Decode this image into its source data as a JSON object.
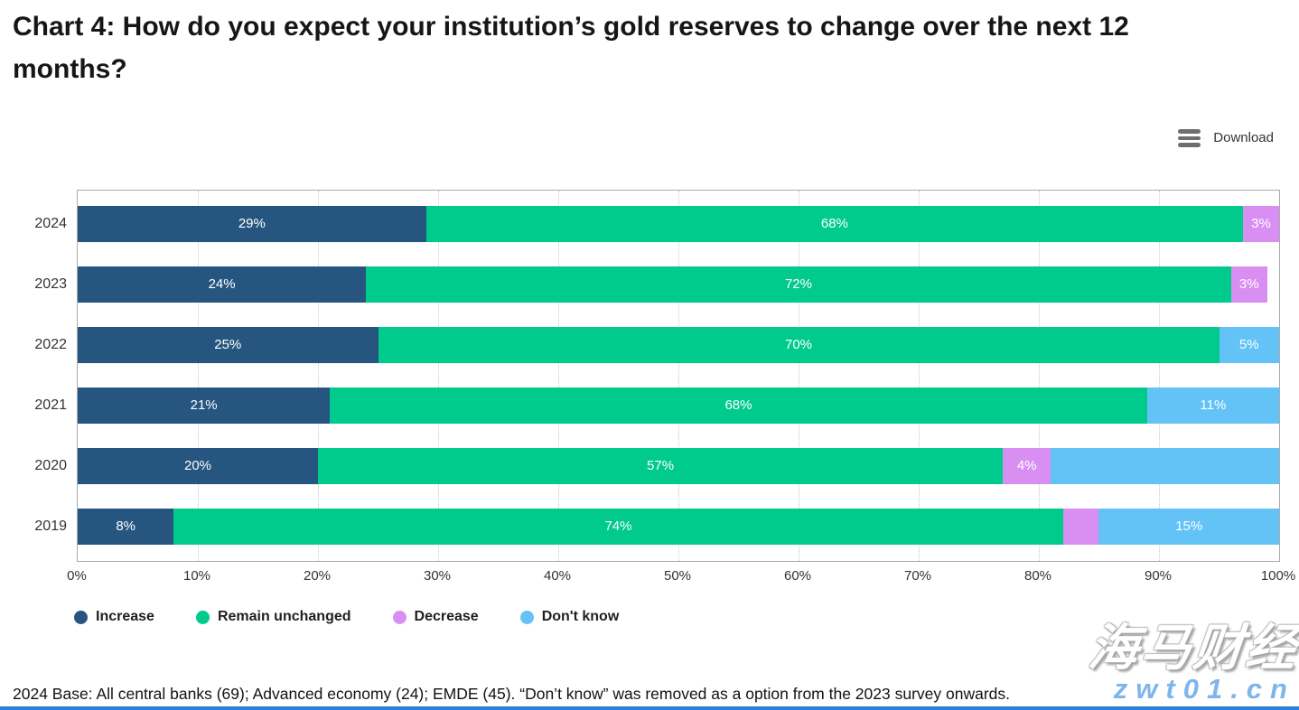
{
  "title": "Chart 4: How do you expect your institution’s gold reserves to change over the next 12 months?",
  "toolbar": {
    "download_label": "Download",
    "menu_icon": "hamburger-menu-icon"
  },
  "chart_data": {
    "type": "bar",
    "orientation": "horizontal-stacked",
    "title": "Chart 4: How do you expect your institution’s gold reserves to change over the next 12 months?",
    "categories": [
      "2024",
      "2023",
      "2022",
      "2021",
      "2020",
      "2019"
    ],
    "series": [
      {
        "name": "Increase",
        "color": "#26567f",
        "values": [
          29,
          24,
          25,
          21,
          20,
          8
        ],
        "labels": [
          "29%",
          "24%",
          "25%",
          "21%",
          "20%",
          "8%"
        ]
      },
      {
        "name": "Remain unchanged",
        "color": "#00ca8c",
        "values": [
          68,
          72,
          70,
          68,
          57,
          74
        ],
        "labels": [
          "68%",
          "72%",
          "70%",
          "68%",
          "57%",
          "74%"
        ]
      },
      {
        "name": "Decrease",
        "color": "#d98ff2",
        "values": [
          3,
          3,
          0,
          0,
          4,
          3
        ],
        "labels": [
          "3%",
          "3%",
          "",
          "",
          "4%",
          ""
        ]
      },
      {
        "name": "Don't know",
        "color": "#63c3f7",
        "values": [
          0,
          0,
          5,
          11,
          19,
          15
        ],
        "labels": [
          "",
          "",
          "5%",
          "11%",
          "",
          "15%"
        ]
      }
    ],
    "xlabel": "",
    "ylabel": "",
    "xlim": [
      0,
      100
    ],
    "xticks": [
      "0%",
      "10%",
      "20%",
      "30%",
      "40%",
      "50%",
      "60%",
      "70%",
      "80%",
      "90%",
      "100%"
    ],
    "grid": "vertical-dotted",
    "legend_position": "bottom",
    "bar_label_color": "#ffffff",
    "note_2019_decrease_label": "3%"
  },
  "footer": "2024 Base: All central banks (69); Advanced economy (24); EMDE (45). “Don’t know” was removed as a option from the 2023 survey onwards.",
  "watermark": {
    "cn": "海马财经",
    "url": "zwt01.cn",
    "url_color": "#5fa4e8"
  },
  "colors": {
    "accent_bottom_bar": "#2f7fd9",
    "plot_border": "#ababab",
    "gridline": "#c9c9c9"
  }
}
